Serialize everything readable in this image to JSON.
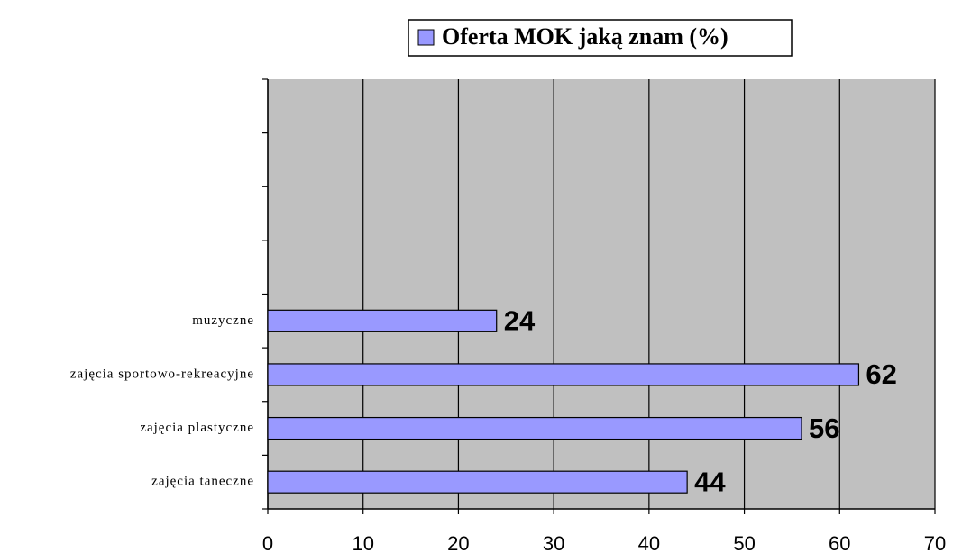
{
  "chart_data": {
    "type": "bar",
    "orientation": "horizontal",
    "categories": [
      null,
      null,
      null,
      null,
      "muzyczne",
      "zajęcia sportowo-rekreacyjne",
      "zajęcia plastyczne",
      "zajęcia taneczne"
    ],
    "series": [
      {
        "name": "Oferta MOK jaką znam (%)",
        "color": "#9999ff",
        "values": [
          null,
          null,
          null,
          null,
          24,
          62,
          56,
          44
        ]
      }
    ],
    "xlim": [
      0,
      70
    ],
    "xticks": [
      0,
      10,
      20,
      30,
      40,
      50,
      60,
      70
    ],
    "grid": true,
    "legend": "top"
  }
}
